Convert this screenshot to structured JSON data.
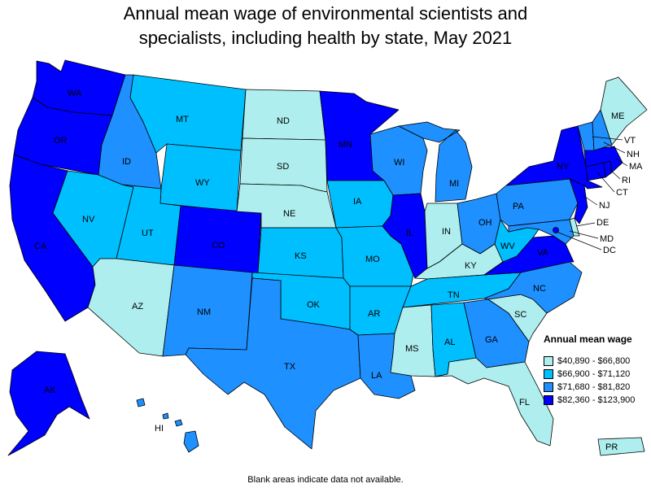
{
  "title_lines": [
    "Annual mean wage of environmental scientists and",
    "specialists, including health by state, May 2021"
  ],
  "legend": {
    "title": "Annual mean wage",
    "items": [
      {
        "label": "$40,890 - $66,800",
        "color": "#aeeeee"
      },
      {
        "label": "$66,900 - $71,120",
        "color": "#00bfff"
      },
      {
        "label": "$71,680 - $81,820",
        "color": "#1e90ff"
      },
      {
        "label": "$82,360 - $123,900",
        "color": "#0000ff"
      }
    ]
  },
  "footnote": "Blank areas indicate data not available.",
  "states": [
    {
      "abbr": "WA",
      "bin": 3
    },
    {
      "abbr": "OR",
      "bin": 3
    },
    {
      "abbr": "CA",
      "bin": 3
    },
    {
      "abbr": "ID",
      "bin": 2
    },
    {
      "abbr": "NV",
      "bin": 1
    },
    {
      "abbr": "MT",
      "bin": 1
    },
    {
      "abbr": "WY",
      "bin": 1
    },
    {
      "abbr": "UT",
      "bin": 1
    },
    {
      "abbr": "AZ",
      "bin": 0
    },
    {
      "abbr": "CO",
      "bin": 3
    },
    {
      "abbr": "NM",
      "bin": 2
    },
    {
      "abbr": "ND",
      "bin": 0
    },
    {
      "abbr": "SD",
      "bin": 0
    },
    {
      "abbr": "NE",
      "bin": 0
    },
    {
      "abbr": "KS",
      "bin": 1
    },
    {
      "abbr": "OK",
      "bin": 1
    },
    {
      "abbr": "TX",
      "bin": 2
    },
    {
      "abbr": "MN",
      "bin": 3
    },
    {
      "abbr": "IA",
      "bin": 1
    },
    {
      "abbr": "MO",
      "bin": 1
    },
    {
      "abbr": "AR",
      "bin": 1
    },
    {
      "abbr": "LA",
      "bin": 2
    },
    {
      "abbr": "WI",
      "bin": 2
    },
    {
      "abbr": "IL",
      "bin": 3
    },
    {
      "abbr": "MI",
      "bin": 2
    },
    {
      "abbr": "IN",
      "bin": 0
    },
    {
      "abbr": "OH",
      "bin": 2
    },
    {
      "abbr": "KY",
      "bin": 0
    },
    {
      "abbr": "TN",
      "bin": 1
    },
    {
      "abbr": "MS",
      "bin": 0
    },
    {
      "abbr": "AL",
      "bin": 1
    },
    {
      "abbr": "GA",
      "bin": 2
    },
    {
      "abbr": "FL",
      "bin": 0
    },
    {
      "abbr": "SC",
      "bin": 0
    },
    {
      "abbr": "NC",
      "bin": 2
    },
    {
      "abbr": "VA",
      "bin": 3
    },
    {
      "abbr": "WV",
      "bin": 1
    },
    {
      "abbr": "PA",
      "bin": 2
    },
    {
      "abbr": "NY",
      "bin": 3
    },
    {
      "abbr": "VT",
      "bin": 2
    },
    {
      "abbr": "NH",
      "bin": 2
    },
    {
      "abbr": "ME",
      "bin": 0
    },
    {
      "abbr": "MA",
      "bin": 3
    },
    {
      "abbr": "RI",
      "bin": 3
    },
    {
      "abbr": "CT",
      "bin": 3
    },
    {
      "abbr": "NJ",
      "bin": 3
    },
    {
      "abbr": "DE",
      "bin": 0
    },
    {
      "abbr": "MD",
      "bin": 2
    },
    {
      "abbr": "DC",
      "bin": 3
    },
    {
      "abbr": "AK",
      "bin": 3
    },
    {
      "abbr": "HI",
      "bin": 2
    },
    {
      "abbr": "PR",
      "bin": 0
    }
  ]
}
